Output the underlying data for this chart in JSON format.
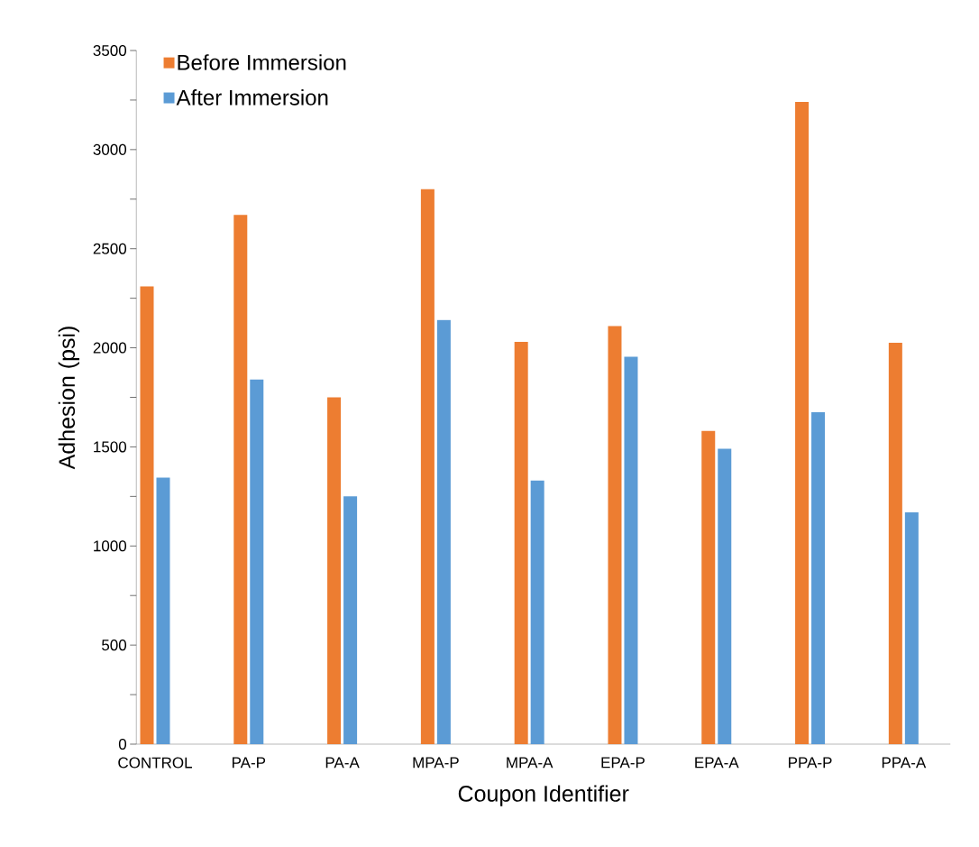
{
  "chart_data": {
    "type": "bar",
    "xlabel": "Coupon Identifier",
    "ylabel": "Adhesion (psi)",
    "categories": [
      "CONTROL",
      "PA-P",
      "PA-A",
      "MPA-P",
      "MPA-A",
      "EPA-P",
      "EPA-A",
      "PPA-P",
      "PPA-A"
    ],
    "series": [
      {
        "name": "Before Immersion",
        "color": "#ed7d31",
        "values": [
          2310,
          2670,
          1750,
          2800,
          2030,
          2110,
          1580,
          3240,
          2025
        ]
      },
      {
        "name": "After Immersion",
        "color": "#5b9bd5",
        "values": [
          1345,
          1840,
          1250,
          2140,
          1330,
          1955,
          1490,
          1675,
          1170
        ]
      }
    ],
    "ylim": [
      0,
      3500
    ],
    "yticks": [
      0,
      {
        "value": 250,
        "label": null
      },
      500,
      {
        "value": 750,
        "label": null
      },
      1000,
      {
        "value": 1250,
        "label": null
      },
      1500,
      {
        "value": 1750,
        "label": null
      },
      2000,
      {
        "value": 2250,
        "label": null
      },
      2500,
      {
        "value": 2750,
        "label": null
      },
      3000,
      {
        "value": 3250,
        "label": null
      },
      3500
    ],
    "legend": "top left"
  }
}
